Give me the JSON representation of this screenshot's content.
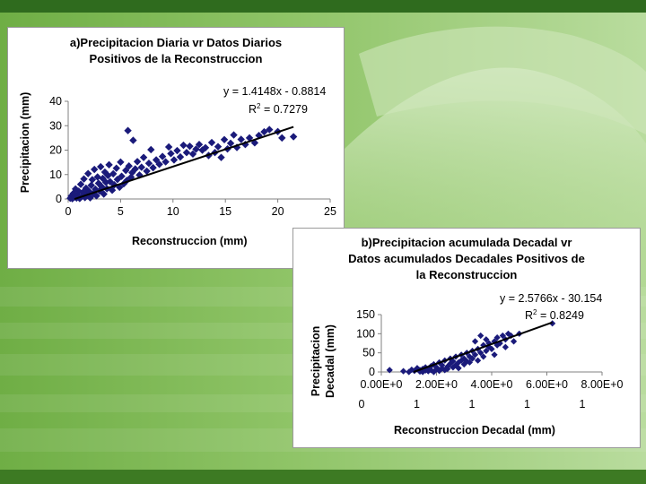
{
  "slide": {
    "top_bar_color": "#2f6b1e",
    "bottom_bar_color": "#3d7a23",
    "background_color": "#8cc063"
  },
  "chart_data": [
    {
      "type": "scatter",
      "title_lines": [
        "a)Precipitacion Diaria vr Datos Diarios",
        "Positivos de la Reconstruccion"
      ],
      "xlabel": "Reconstruccion (mm)",
      "ylabel": "Precipitacion (mm)",
      "xlim": [
        0,
        25
      ],
      "ylim": [
        0,
        40
      ],
      "x_ticks": [
        0,
        5,
        10,
        15,
        20,
        25
      ],
      "x_tick_labels": [
        "0",
        "5",
        "10",
        "15",
        "20",
        "25"
      ],
      "y_ticks": [
        0,
        10,
        20,
        30,
        40
      ],
      "y_tick_labels": [
        "0",
        "10",
        "20",
        "30",
        "40"
      ],
      "equation": "y = 1.4148x - 0.8814",
      "r2_prefix": "R",
      "r2_sup": "2",
      "r2_value": " = 0.7279",
      "trendline": {
        "slope": 1.4148,
        "intercept": -0.8814,
        "x_range": [
          0.6,
          21.5
        ]
      },
      "marker_color": "#1a1a7a",
      "points": [
        [
          0.2,
          0.3
        ],
        [
          0.3,
          1.2
        ],
        [
          0.4,
          0.1
        ],
        [
          0.5,
          2.3
        ],
        [
          0.6,
          0.8
        ],
        [
          0.7,
          4.1
        ],
        [
          0.8,
          0.4
        ],
        [
          0.9,
          1.6
        ],
        [
          1.0,
          3.2
        ],
        [
          1.1,
          0.2
        ],
        [
          1.2,
          6.0
        ],
        [
          1.3,
          1.1
        ],
        [
          1.4,
          2.7
        ],
        [
          1.5,
          8.2
        ],
        [
          1.6,
          0.6
        ],
        [
          1.7,
          4.4
        ],
        [
          1.8,
          1.9
        ],
        [
          1.9,
          10.4
        ],
        [
          2.0,
          3.1
        ],
        [
          2.1,
          0.5
        ],
        [
          2.2,
          5.6
        ],
        [
          2.3,
          7.9
        ],
        [
          2.4,
          2.2
        ],
        [
          2.5,
          12.1
        ],
        [
          2.6,
          4.0
        ],
        [
          2.7,
          1.3
        ],
        [
          2.8,
          9.0
        ],
        [
          2.9,
          6.4
        ],
        [
          3.0,
          3.3
        ],
        [
          3.1,
          13.2
        ],
        [
          3.2,
          5.0
        ],
        [
          3.3,
          8.4
        ],
        [
          3.4,
          2.0
        ],
        [
          3.5,
          11.0
        ],
        [
          3.6,
          6.8
        ],
        [
          3.7,
          4.2
        ],
        [
          3.8,
          9.6
        ],
        [
          3.9,
          14.0
        ],
        [
          4.0,
          7.1
        ],
        [
          4.2,
          3.6
        ],
        [
          4.3,
          10.3
        ],
        [
          4.4,
          5.8
        ],
        [
          4.6,
          12.6
        ],
        [
          4.7,
          8.0
        ],
        [
          4.9,
          4.8
        ],
        [
          5.0,
          15.1
        ],
        [
          5.1,
          9.3
        ],
        [
          5.3,
          6.2
        ],
        [
          5.5,
          11.7
        ],
        [
          5.6,
          7.6
        ],
        [
          5.7,
          28.0
        ],
        [
          5.8,
          13.5
        ],
        [
          6.0,
          8.9
        ],
        [
          6.1,
          10.8
        ],
        [
          6.2,
          24.0
        ],
        [
          6.4,
          12.3
        ],
        [
          6.6,
          15.3
        ],
        [
          6.8,
          9.8
        ],
        [
          7.0,
          13.0
        ],
        [
          7.2,
          17.0
        ],
        [
          7.5,
          11.4
        ],
        [
          7.7,
          14.6
        ],
        [
          7.9,
          20.2
        ],
        [
          8.1,
          12.8
        ],
        [
          8.4,
          16.0
        ],
        [
          8.7,
          14.2
        ],
        [
          9.0,
          17.4
        ],
        [
          9.3,
          15.2
        ],
        [
          9.6,
          21.3
        ],
        [
          9.8,
          18.6
        ],
        [
          10.1,
          16.0
        ],
        [
          10.4,
          19.8
        ],
        [
          10.7,
          17.2
        ],
        [
          11.0,
          22.0
        ],
        [
          11.3,
          19.0
        ],
        [
          11.6,
          21.6
        ],
        [
          11.9,
          18.4
        ],
        [
          12.2,
          20.4
        ],
        [
          12.5,
          22.3
        ],
        [
          12.8,
          20.0
        ],
        [
          13.1,
          21.0
        ],
        [
          13.4,
          17.8
        ],
        [
          13.7,
          23.1
        ],
        [
          14.0,
          19.0
        ],
        [
          14.3,
          21.4
        ],
        [
          14.6,
          17.0
        ],
        [
          14.9,
          24.3
        ],
        [
          15.2,
          20.5
        ],
        [
          15.5,
          22.8
        ],
        [
          15.8,
          26.2
        ],
        [
          16.1,
          21.1
        ],
        [
          16.5,
          24.4
        ],
        [
          16.9,
          22.3
        ],
        [
          17.3,
          25.0
        ],
        [
          17.8,
          23.0
        ],
        [
          18.2,
          26.0
        ],
        [
          18.7,
          27.5
        ],
        [
          19.2,
          28.4
        ],
        [
          20.0,
          27.6
        ],
        [
          20.4,
          25.0
        ],
        [
          21.5,
          25.5
        ]
      ]
    },
    {
      "type": "scatter",
      "title_lines": [
        "b)Precipitacion acumulada Decadal vr",
        "Datos acumulados Decadales Positivos de",
        "la Reconstruccion"
      ],
      "xlabel": "Reconstruccion Decadal (mm)",
      "ylabel_lines": [
        "Precipitacion",
        "Decadal (mm)"
      ],
      "xlim": [
        0,
        80
      ],
      "ylim": [
        0,
        150
      ],
      "x_ticks": [
        0,
        20,
        40,
        60,
        80
      ],
      "x_tick_labels_line1": [
        "0.00E+0",
        "2.00E+0",
        "4.00E+0",
        "6.00E+0",
        "8.00E+0"
      ],
      "x_tick_labels_line2": [
        "0",
        "1",
        "1",
        "1",
        "1"
      ],
      "y_ticks": [
        0,
        50,
        100,
        150
      ],
      "y_tick_labels": [
        "0",
        "50",
        "100",
        "150"
      ],
      "equation": "y = 2.5766x - 30.154",
      "r2_prefix": "R",
      "r2_sup": "2",
      "r2_value": " = 0.8249",
      "trendline": {
        "slope": 2.5766,
        "intercept": -30.154,
        "x_range": [
          11.7,
          62
        ]
      },
      "marker_color": "#1a1a7a",
      "points": [
        [
          3,
          5
        ],
        [
          8,
          2
        ],
        [
          10,
          0
        ],
        [
          11,
          6
        ],
        [
          12,
          3
        ],
        [
          13,
          10
        ],
        [
          14,
          1
        ],
        [
          14,
          5
        ],
        [
          15,
          8
        ],
        [
          15,
          0
        ],
        [
          16,
          4
        ],
        [
          16,
          12
        ],
        [
          17,
          2
        ],
        [
          17,
          9
        ],
        [
          18,
          15
        ],
        [
          18,
          5
        ],
        [
          19,
          0
        ],
        [
          19,
          20
        ],
        [
          20,
          7
        ],
        [
          20,
          12
        ],
        [
          21,
          3
        ],
        [
          21,
          25
        ],
        [
          22,
          10
        ],
        [
          22,
          18
        ],
        [
          23,
          5
        ],
        [
          23,
          30
        ],
        [
          24,
          14
        ],
        [
          24,
          8
        ],
        [
          25,
          22
        ],
        [
          25,
          35
        ],
        [
          26,
          12
        ],
        [
          26,
          28
        ],
        [
          27,
          18
        ],
        [
          27,
          40
        ],
        [
          28,
          25
        ],
        [
          28,
          10
        ],
        [
          29,
          30
        ],
        [
          29,
          45
        ],
        [
          30,
          20
        ],
        [
          30,
          35
        ],
        [
          31,
          28
        ],
        [
          31,
          50
        ],
        [
          32,
          40
        ],
        [
          32,
          25
        ],
        [
          33,
          55
        ],
        [
          33,
          35
        ],
        [
          34,
          45
        ],
        [
          34,
          80
        ],
        [
          35,
          30
        ],
        [
          35,
          60
        ],
        [
          36,
          50
        ],
        [
          36,
          95
        ],
        [
          37,
          40
        ],
        [
          37,
          70
        ],
        [
          38,
          55
        ],
        [
          38,
          85
        ],
        [
          39,
          65
        ],
        [
          39,
          75
        ],
        [
          40,
          60
        ],
        [
          41,
          80
        ],
        [
          41,
          45
        ],
        [
          42,
          70
        ],
        [
          42,
          90
        ],
        [
          43,
          75
        ],
        [
          44,
          95
        ],
        [
          45,
          85
        ],
        [
          45,
          65
        ],
        [
          46,
          100
        ],
        [
          47,
          95
        ],
        [
          48,
          80
        ],
        [
          50,
          100
        ],
        [
          62,
          127
        ]
      ]
    }
  ]
}
